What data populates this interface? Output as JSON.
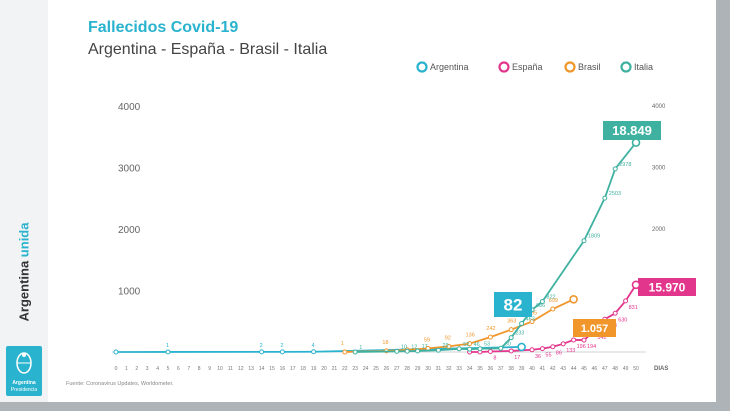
{
  "sidebar": {
    "text_part1": "Argentina",
    "text_part2": "unida",
    "logo_line1": "Argentina",
    "logo_line2": "Presidencia"
  },
  "footer": {
    "source": "Fuente: Coronavirus Updates, Worldometer."
  },
  "colors": {
    "argentina": "#2ab3ce",
    "espana": "#e2368d",
    "brasil": "#f0962b",
    "italia": "#3fb1a1",
    "title": "#2ab3ce"
  },
  "chart_data": {
    "type": "line",
    "title": "Fallecidos Covid-19",
    "subtitle": "Argentina - España - Brasil - Italia",
    "xlabel": "DIAS",
    "ylabel": "",
    "x": [
      0,
      1,
      2,
      3,
      4,
      5,
      6,
      7,
      8,
      9,
      10,
      11,
      12,
      13,
      14,
      15,
      16,
      17,
      18,
      19,
      20,
      21,
      22,
      23,
      24,
      25,
      26,
      27,
      28,
      29,
      30,
      31,
      32,
      33,
      34,
      35,
      36,
      37,
      38,
      39,
      40,
      41,
      42,
      43,
      44,
      45,
      46,
      47,
      48,
      49,
      50
    ],
    "ylim": [
      0,
      4000
    ],
    "y_ticks_left": [
      1000,
      2000,
      3000,
      4000
    ],
    "y_ticks_right": [
      1000,
      2000,
      3000,
      4000
    ],
    "grid": false,
    "legend_position": "top-right",
    "series": [
      {
        "name": "Argentina",
        "color_key": "argentina",
        "points": [
          {
            "x": 0,
            "y": 0
          },
          {
            "x": 5,
            "y": 1,
            "label": "1"
          },
          {
            "x": 14,
            "y": 2,
            "label": "2"
          },
          {
            "x": 16,
            "y": 2,
            "label": "2"
          },
          {
            "x": 19,
            "y": 4,
            "label": "4"
          },
          {
            "x": 39,
            "y": 82
          }
        ],
        "callout": "82"
      },
      {
        "name": "España",
        "color_key": "espana",
        "points": [
          {
            "x": 34,
            "y": 0
          },
          {
            "x": 35,
            "y": 0
          },
          {
            "x": 36,
            "y": 8,
            "label": "8"
          },
          {
            "x": 38,
            "y": 17,
            "label": "17"
          },
          {
            "x": 40,
            "y": 36,
            "label": "36"
          },
          {
            "x": 41,
            "y": 55,
            "label": "55"
          },
          {
            "x": 42,
            "y": 86,
            "label": "86"
          },
          {
            "x": 43,
            "y": 133,
            "label": "133"
          },
          {
            "x": 44,
            "y": 196,
            "label": "196"
          },
          {
            "x": 45,
            "y": 194,
            "label": "194"
          },
          {
            "x": 46,
            "y": 342,
            "label": "342"
          },
          {
            "x": 47,
            "y": 533,
            "label": "533"
          },
          {
            "x": 48,
            "y": 630,
            "label": "630"
          },
          {
            "x": 49,
            "y": 831,
            "label": "831"
          },
          {
            "x": 50,
            "y": 1093,
            "label": "1093"
          }
        ],
        "callout": "15.970"
      },
      {
        "name": "Brasil",
        "color_key": "brasil",
        "points": [
          {
            "x": 22,
            "y": 1,
            "label": "1"
          },
          {
            "x": 26,
            "y": 18,
            "label": "18"
          },
          {
            "x": 28,
            "y": 34
          },
          {
            "x": 30,
            "y": 59,
            "label": "59"
          },
          {
            "x": 32,
            "y": 92,
            "label": "92"
          },
          {
            "x": 34,
            "y": 136,
            "label": "136"
          },
          {
            "x": 36,
            "y": 242,
            "label": "242"
          },
          {
            "x": 38,
            "y": 363,
            "label": "363"
          },
          {
            "x": 40,
            "y": 495,
            "label": "495"
          },
          {
            "x": 42,
            "y": 699,
            "label": "699"
          },
          {
            "x": 44,
            "y": 857
          }
        ],
        "callout": "1.057"
      },
      {
        "name": "Italia",
        "color_key": "italia",
        "points": [
          {
            "x": 23,
            "y": 1,
            "label": "1"
          },
          {
            "x": 27,
            "y": 10,
            "label": "10"
          },
          {
            "x": 28,
            "y": 12,
            "label": "12"
          },
          {
            "x": 29,
            "y": 17,
            "label": "17"
          },
          {
            "x": 31,
            "y": 29,
            "label": "29"
          },
          {
            "x": 33,
            "y": 52,
            "label": "52"
          },
          {
            "x": 34,
            "y": 46,
            "label": "46"
          },
          {
            "x": 35,
            "y": 53,
            "label": "53"
          },
          {
            "x": 37,
            "y": 60,
            "label": "60"
          },
          {
            "x": 38,
            "y": 233,
            "label": "233"
          },
          {
            "x": 39,
            "y": 463,
            "label": "463"
          },
          {
            "x": 40,
            "y": 686,
            "label": "686"
          },
          {
            "x": 41,
            "y": 822,
            "label": "822"
          },
          {
            "x": 45,
            "y": 1809,
            "label": "1809"
          },
          {
            "x": 47,
            "y": 2503,
            "label": "2503"
          },
          {
            "x": 48,
            "y": 2978,
            "label": "2978"
          },
          {
            "x": 50,
            "y": 3405,
            "label": "3405"
          }
        ],
        "callout": "18.849"
      }
    ]
  }
}
